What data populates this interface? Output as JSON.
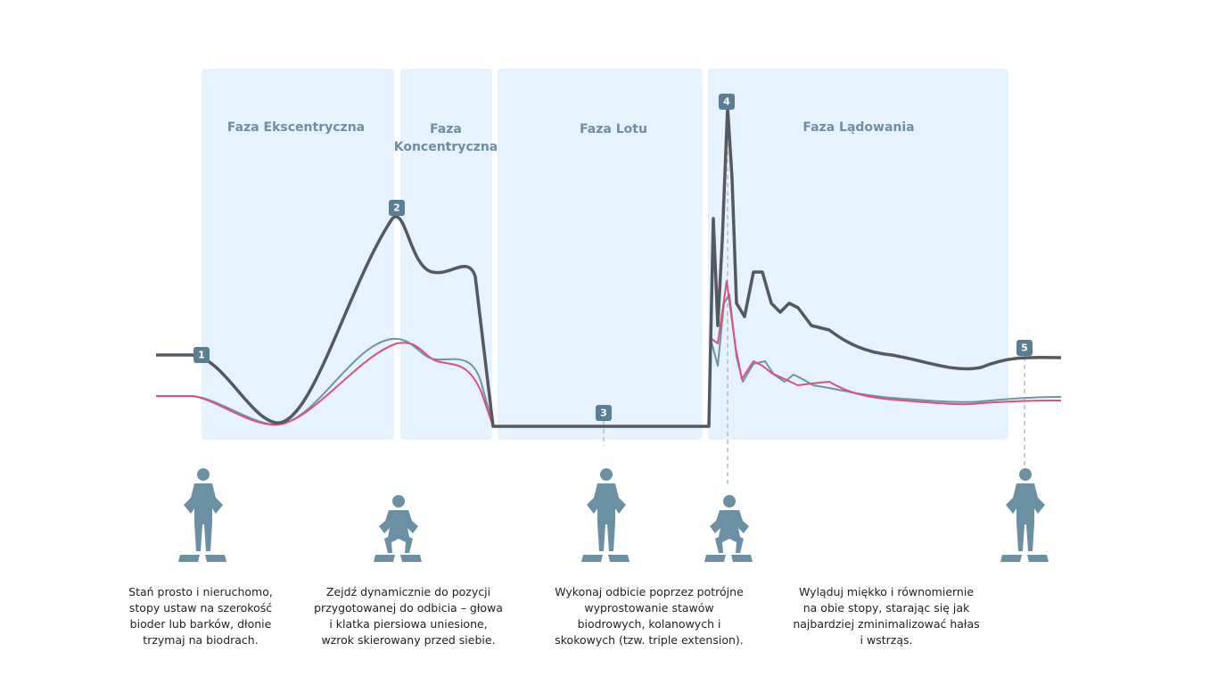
{
  "phases": [
    {
      "label": [
        "Faza Ekscentryczna"
      ]
    },
    {
      "label": [
        "Faza",
        "Koncentryczna"
      ]
    },
    {
      "label": [
        "Faza Lotu"
      ]
    },
    {
      "label": [
        "Faza Lądowania"
      ]
    }
  ],
  "markers": [
    "1",
    "2",
    "3",
    "4",
    "5"
  ],
  "steps": [
    {
      "lines": [
        "Stań prosto i nieruchomo,",
        "stopy ustaw na szerokość",
        "bioder lub barków, dłonie",
        "trzymaj na biodrach."
      ]
    },
    {
      "lines": [
        "Zejdź dynamicznie do pozycji",
        "przygotowanej do odbicia – głowa",
        "i klatka piersiowa uniesione,",
        "wzrok skierowany przed siebie."
      ]
    },
    {
      "lines": [
        "Wykonaj odbicie poprzez potrójne",
        "wyprostowanie stawów",
        "biodrowych, kolanowych i",
        "skokowych (tzw. triple extension)."
      ]
    },
    {
      "lines": [
        "Wyląduj miękko i równomiernie",
        "na obie stopy, starając się jak",
        "najbardziej zminimalizować hałas",
        "i wstrząs."
      ]
    }
  ]
}
